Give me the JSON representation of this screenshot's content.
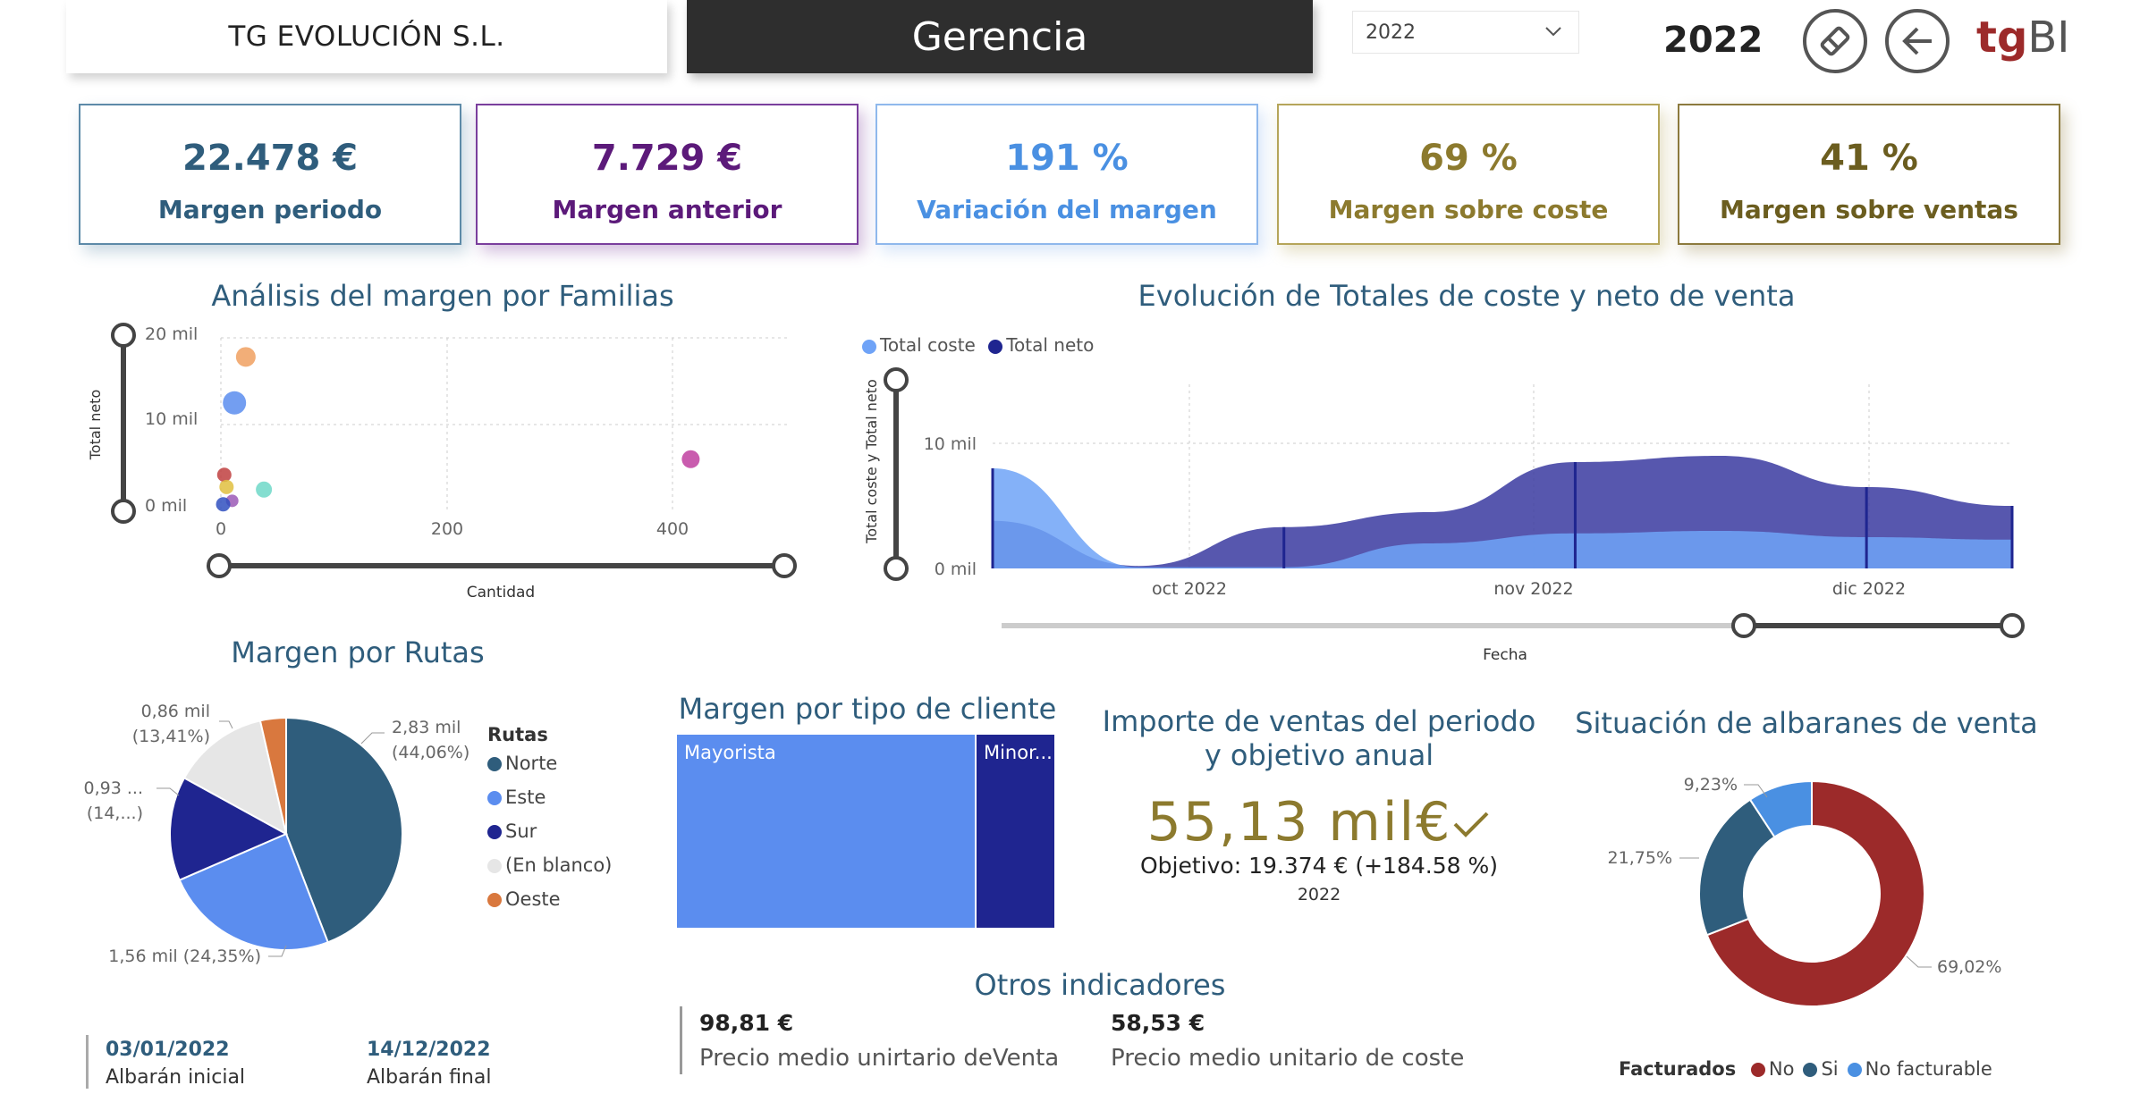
{
  "header": {
    "company": "TG EVOLUCIÓN S.L.",
    "section": "Gerencia",
    "year_selected": "2022",
    "year_display": "2022",
    "logo_tg": "tg",
    "logo_bi": "BI"
  },
  "kpis": [
    {
      "value": "22.478 €",
      "label": "Margen periodo",
      "color": "#2f5d7c",
      "border": "#5d8aa8"
    },
    {
      "value": "7.729 €",
      "label": "Margen anterior",
      "color": "#5c1a7a",
      "border": "#7a3e9d"
    },
    {
      "value": "191 %",
      "label": "Variación del margen",
      "color": "#4a90e2",
      "border": "#8fb8ec"
    },
    {
      "value": "69 %",
      "label": "Margen sobre coste",
      "color": "#8c7a2e",
      "border": "#b5a55a"
    },
    {
      "value": "41 %",
      "label": "Margen sobre ventas",
      "color": "#6b5d1f",
      "border": "#8c7a3e"
    }
  ],
  "scatter": {
    "title": "Análisis del margen por Familias",
    "ylabel": "Total neto",
    "xlabel": "Cantidad",
    "y_ticks": [
      "20 mil",
      "10 mil",
      "0 mil"
    ],
    "x_ticks": [
      "0",
      "200",
      "400"
    ]
  },
  "area": {
    "title": "Evolución de Totales de coste y neto de venta",
    "legend": [
      "Total coste",
      "Total neto"
    ],
    "ylabel": "Total coste y Total neto",
    "xlabel": "Fecha",
    "y_ticks": [
      "10 mil",
      "0 mil"
    ],
    "x_ticks": [
      "oct 2022",
      "nov 2022",
      "dic 2022"
    ]
  },
  "pie": {
    "title": "Margen por Rutas",
    "legend_title": "Rutas",
    "labels": {
      "norte": [
        "2,83 mil",
        "(44,06%)"
      ],
      "este": [
        "1,56 mil (24,35%)"
      ],
      "sur": [
        "0,93 ...",
        "(14,...)"
      ],
      "blanco": [
        "0,86 mil",
        "(13,41%)"
      ]
    }
  },
  "treemap": {
    "title": "Margen por tipo de cliente",
    "items": [
      {
        "label": "Mayorista"
      },
      {
        "label": "Minor..."
      }
    ]
  },
  "sales": {
    "title_line1": "Importe de ventas del periodo",
    "title_line2": "y objetivo anual",
    "value": "55,13 mil€",
    "objective": "Objetivo: 19.374 € (+184.58 %)",
    "year": "2022"
  },
  "donut": {
    "title": "Situación de albaranes de venta",
    "legend_title": "Facturados",
    "labels": {
      "no": "69,02%",
      "si": "21,75%",
      "nofact": "9,23%"
    }
  },
  "others": {
    "title": "Otros indicadores",
    "items": [
      {
        "value": "98,81 €",
        "label": "Precio medio unirtario deVenta"
      },
      {
        "value": "58,53 €",
        "label": "Precio medio unitario de coste"
      }
    ]
  },
  "dates": [
    {
      "value": "03/01/2022",
      "label": "Albarán inicial"
    },
    {
      "value": "14/12/2022",
      "label": "Albarán final"
    }
  ],
  "chart_data": [
    {
      "type": "scatter",
      "title": "Análisis del margen por Familias",
      "xlabel": "Cantidad",
      "ylabel": "Total neto",
      "xlim": [
        0,
        500
      ],
      "ylim": [
        0,
        20000
      ],
      "points": [
        {
          "x": 22,
          "y": 17800,
          "color": "#f0a060",
          "size": 22
        },
        {
          "x": 12,
          "y": 12500,
          "color": "#5b8def",
          "size": 26
        },
        {
          "x": 415,
          "y": 6000,
          "color": "#c040a0",
          "size": 20
        },
        {
          "x": 38,
          "y": 2500,
          "color": "#6fd8c8",
          "size": 18
        },
        {
          "x": 3,
          "y": 4200,
          "color": "#c04040",
          "size": 16
        },
        {
          "x": 5,
          "y": 2800,
          "color": "#e0c040",
          "size": 16
        },
        {
          "x": 10,
          "y": 1200,
          "color": "#9b59b6",
          "size": 14
        },
        {
          "x": 2,
          "y": 800,
          "color": "#3050c0",
          "size": 16
        }
      ]
    },
    {
      "type": "area",
      "title": "Evolución de Totales de coste y neto de venta",
      "xlabel": "Fecha",
      "ylabel": "Total coste y Total neto",
      "ylim": [
        0,
        10000
      ],
      "x": [
        "2022-09-05",
        "2022-09-20",
        "2022-10-05",
        "2022-10-20",
        "2022-11-05",
        "2022-11-20",
        "2022-12-05",
        "2022-12-20"
      ],
      "series": [
        {
          "name": "Total coste",
          "values": [
            8000,
            100,
            100,
            2000,
            2800,
            3000,
            2500,
            2300
          ],
          "color": "#6fa3f7"
        },
        {
          "name": "Total neto",
          "values": [
            3800,
            200,
            3300,
            4500,
            8500,
            9000,
            6500,
            5000
          ],
          "color": "#3a3aa0"
        }
      ]
    },
    {
      "type": "pie",
      "title": "Margen por Rutas",
      "categories": [
        "Norte",
        "Este",
        "Sur",
        "(En blanco)",
        "Oeste"
      ],
      "values": [
        2830,
        1560,
        930,
        860,
        230
      ],
      "colors": [
        "#2f5d7c",
        "#5b8def",
        "#1f2590",
        "#e6e6e6",
        "#d9783e"
      ]
    },
    {
      "type": "treemap",
      "title": "Margen por tipo de cliente",
      "categories": [
        "Mayorista",
        "Minor..."
      ],
      "values": [
        79,
        21
      ],
      "colors": [
        "#5b8def",
        "#1f2590"
      ]
    },
    {
      "type": "pie",
      "title": "Situación de albaranes de venta",
      "categories": [
        "No",
        "Si",
        "No facturable"
      ],
      "values": [
        69.02,
        21.75,
        9.23
      ],
      "colors": [
        "#9c2a2a",
        "#2f5d7c",
        "#4a90e2"
      ]
    }
  ]
}
